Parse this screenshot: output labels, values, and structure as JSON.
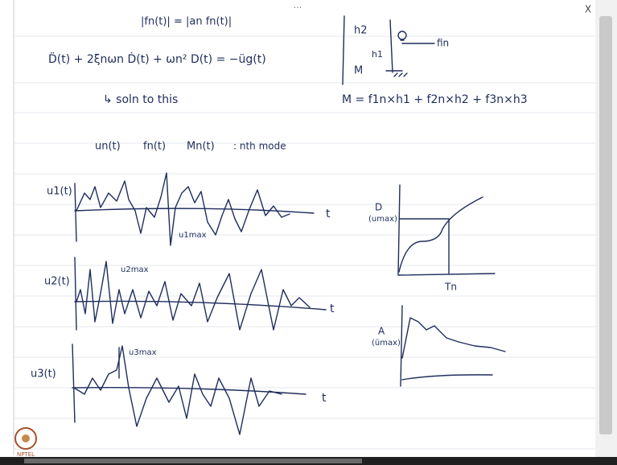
{
  "top_bar": {
    "menu": "···",
    "close": "X"
  },
  "notes": {
    "partial_top": "|fn(t)| = |an fn(t)|",
    "equation": "D̈(t) + 2ξnωn Ḋ(t) + ωn² D(t) = −üg(t)",
    "solution_note": "↳ soln to this",
    "moment_equation": "M = f1n×h1 + f2n×h2 + f3n×h3",
    "frame": {
      "h2": "h2",
      "h1": "h1",
      "m": "M",
      "force": "fin"
    },
    "modal_quantities": [
      "un(t)",
      "fn(t)",
      "Mn(t)",
      ": nth mode"
    ],
    "signals": [
      {
        "label": "u1(t)",
        "peak": "u1max",
        "axis": "t"
      },
      {
        "label": "u2(t)",
        "peak": "u2max",
        "axis": "t"
      },
      {
        "label": "u3(t)",
        "peak": "u3max",
        "axis": "t"
      }
    ],
    "displacement_spectrum": {
      "y_label": "D",
      "y_sub": "(umax)",
      "x_label": "Tn"
    },
    "acceleration_spectrum": {
      "y_label": "A",
      "y_sub": "(ümax)"
    }
  },
  "logo": "NPTEL"
}
